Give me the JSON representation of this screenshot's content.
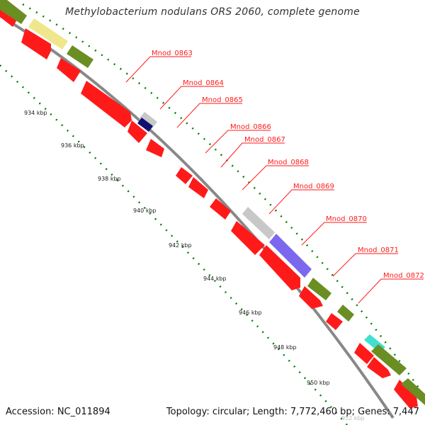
{
  "title": "Methylobacterium nodulans ORS 2060, complete genome",
  "footer": {
    "accession": "Accession: NC_011894",
    "summary": "Topology: circular; Length: 7,772,460 bp; Genes: 7,447"
  },
  "scale_labels": [
    {
      "id": "934",
      "text": "934 kbp"
    },
    {
      "id": "936",
      "text": "936 kbp"
    },
    {
      "id": "938",
      "text": "938 kbp"
    },
    {
      "id": "940",
      "text": "940 kbp"
    },
    {
      "id": "942",
      "text": "942 kbp"
    },
    {
      "id": "944",
      "text": "944 kbp"
    },
    {
      "id": "946",
      "text": "946 kbp"
    },
    {
      "id": "948",
      "text": "948 kbp"
    },
    {
      "id": "950",
      "text": "950 kbp"
    },
    {
      "id": "952",
      "text": "952 kbp"
    }
  ],
  "gene_labels": [
    {
      "id": "mnod-0863",
      "text": "Mnod_0863"
    },
    {
      "id": "mnod-0864",
      "text": "Mnod_0864"
    },
    {
      "id": "mnod-0865",
      "text": "Mnod_0865"
    },
    {
      "id": "mnod-0866",
      "text": "Mnod_0866"
    },
    {
      "id": "mnod-0867",
      "text": "Mnod_0867"
    },
    {
      "id": "mnod-0868",
      "text": "Mnod_0868"
    },
    {
      "id": "mnod-0869",
      "text": "Mnod_0869"
    },
    {
      "id": "mnod-0870",
      "text": "Mnod_0870"
    },
    {
      "id": "mnod-0871",
      "text": "Mnod_0871"
    },
    {
      "id": "mnod-0872",
      "text": "Mnod_0872"
    }
  ],
  "colors": {
    "cds": "#ff1a1a",
    "olive": "#6b8e23",
    "cream": "#f0e68c",
    "grey": "#c8c8c8",
    "navy": "#101070",
    "slate": "#7b68ee",
    "cyan": "#40e0d0",
    "backbone": "#888888",
    "ticks": "#008000",
    "label": "#ff1a1a"
  }
}
